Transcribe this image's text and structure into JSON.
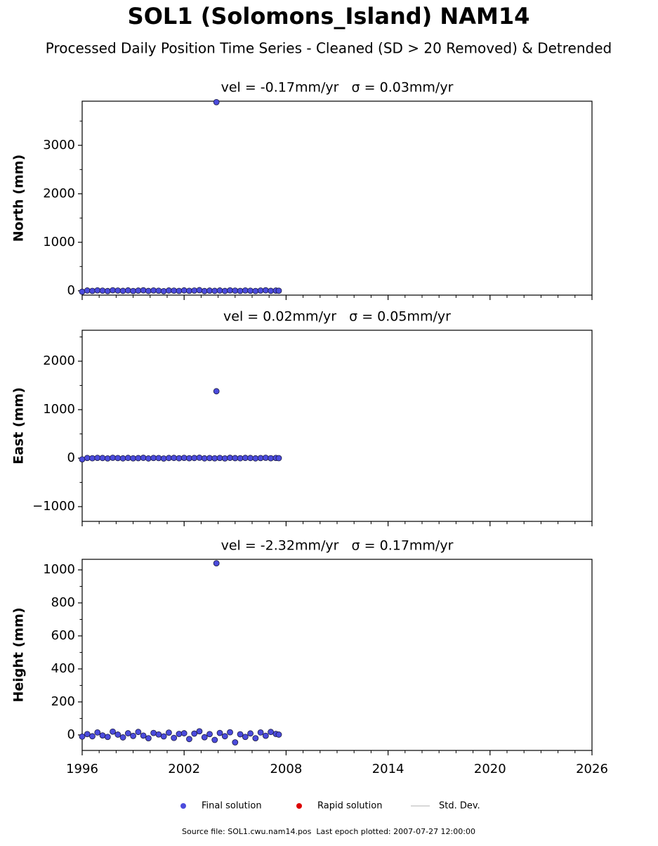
{
  "title": "SOL1 (Solomons_Island) NAM14",
  "subtitle": "Processed Daily Position Time Series - Cleaned (SD > 20 Removed) & Detrended",
  "legend": [
    {
      "name": "Final solution",
      "color": "#4b4bdc",
      "marker": "circle"
    },
    {
      "name": "Rapid solution",
      "color": "#dd0000",
      "marker": "circle"
    },
    {
      "name": "Std. Dev.",
      "color": "#cccccc",
      "marker": "line"
    }
  ],
  "footer": "Source file: SOL1.cwu.nam14.pos  Last epoch plotted: 2007-07-27 12:00:00",
  "chart_data": [
    {
      "type": "scatter",
      "title": "vel = -0.17mm/yr   σ = 0.03mm/yr",
      "y_label": "North (mm)",
      "xlim": [
        1996,
        2026
      ],
      "ylim": [
        -90,
        3910
      ],
      "yticks": [
        0,
        1000,
        2000,
        3000
      ],
      "series": [
        {
          "name": "Final solution",
          "color": "#4b4bdc",
          "x": [
            1996.0,
            1996.3,
            1996.6,
            1996.9,
            1997.2,
            1997.5,
            1997.8,
            1998.1,
            1998.4,
            1998.7,
            1999.0,
            1999.3,
            1999.6,
            1999.9,
            2000.2,
            2000.5,
            2000.8,
            2001.1,
            2001.4,
            2001.7,
            2002.0,
            2002.3,
            2002.6,
            2002.9,
            2003.2,
            2003.5,
            2003.8,
            2003.9,
            2004.1,
            2004.4,
            2004.7,
            2005.0,
            2005.3,
            2005.6,
            2005.9,
            2006.2,
            2006.5,
            2006.8,
            2007.1,
            2007.4,
            2007.57
          ],
          "values": [
            -20,
            5,
            -3,
            8,
            2,
            -6,
            10,
            4,
            -2,
            7,
            -5,
            3,
            9,
            -4,
            6,
            1,
            -8,
            5,
            2,
            -3,
            7,
            -1,
            4,
            12,
            -6,
            3,
            -2,
            3890,
            5,
            -4,
            8,
            2,
            -3,
            6,
            1,
            -5,
            4,
            9,
            -2,
            3,
            0
          ]
        }
      ]
    },
    {
      "type": "scatter",
      "title": "vel = 0.02mm/yr   σ = 0.05mm/yr",
      "y_label": "East (mm)",
      "xlim": [
        1996,
        2026
      ],
      "ylim": [
        -1304,
        2638
      ],
      "yticks": [
        {
          "value": -1000,
          "label": "−1000"
        },
        0,
        1000,
        2000
      ],
      "series": [
        {
          "name": "Final solution",
          "color": "#4b4bdc",
          "x": [
            1996.0,
            1996.3,
            1996.6,
            1996.9,
            1997.2,
            1997.5,
            1997.8,
            1998.1,
            1998.4,
            1998.7,
            1999.0,
            1999.3,
            1999.6,
            1999.9,
            2000.2,
            2000.5,
            2000.8,
            2001.1,
            2001.4,
            2001.7,
            2002.0,
            2002.3,
            2002.6,
            2002.9,
            2003.2,
            2003.5,
            2003.8,
            2003.9,
            2004.1,
            2004.4,
            2004.7,
            2005.0,
            2005.3,
            2005.6,
            2005.9,
            2006.2,
            2006.5,
            2006.8,
            2007.1,
            2007.4,
            2007.57
          ],
          "values": [
            -25,
            4,
            -2,
            6,
            3,
            -5,
            8,
            2,
            -4,
            5,
            -3,
            1,
            7,
            -6,
            4,
            2,
            -7,
            3,
            5,
            -2,
            6,
            -1,
            3,
            9,
            -4,
            2,
            -3,
            1380,
            4,
            -5,
            7,
            1,
            -2,
            5,
            3,
            -4,
            2,
            8,
            -1,
            4,
            0
          ]
        }
      ]
    },
    {
      "type": "scatter",
      "title": "vel = -2.32mm/yr   σ = 0.17mm/yr",
      "y_label": "Height (mm)",
      "xlim": [
        1996,
        2026
      ],
      "xticks": [
        1996,
        2002,
        2008,
        2014,
        2020,
        2026
      ],
      "ylim": [
        -94,
        1064
      ],
      "yticks": [
        0,
        200,
        400,
        600,
        800,
        1000
      ],
      "series": [
        {
          "name": "Final solution",
          "color": "#4b4bdc",
          "x": [
            1996.0,
            1996.3,
            1996.6,
            1996.9,
            1997.2,
            1997.5,
            1997.8,
            1998.1,
            1998.4,
            1998.7,
            1999.0,
            1999.3,
            1999.6,
            1999.9,
            2000.2,
            2000.5,
            2000.8,
            2001.1,
            2001.4,
            2001.7,
            2002.0,
            2002.3,
            2002.6,
            2002.9,
            2003.2,
            2003.5,
            2003.8,
            2003.9,
            2004.1,
            2004.4,
            2004.7,
            2005.0,
            2005.3,
            2005.6,
            2005.9,
            2006.2,
            2006.5,
            2006.8,
            2007.1,
            2007.4,
            2007.57
          ],
          "values": [
            -10,
            5,
            -8,
            15,
            -3,
            -12,
            20,
            2,
            -15,
            10,
            -6,
            18,
            -4,
            -20,
            12,
            3,
            -9,
            14,
            -18,
            6,
            10,
            -25,
            8,
            22,
            -14,
            5,
            -30,
            1040,
            12,
            -8,
            16,
            -45,
            4,
            -12,
            9,
            -20,
            15,
            -5,
            18,
            6,
            2
          ]
        }
      ]
    }
  ]
}
